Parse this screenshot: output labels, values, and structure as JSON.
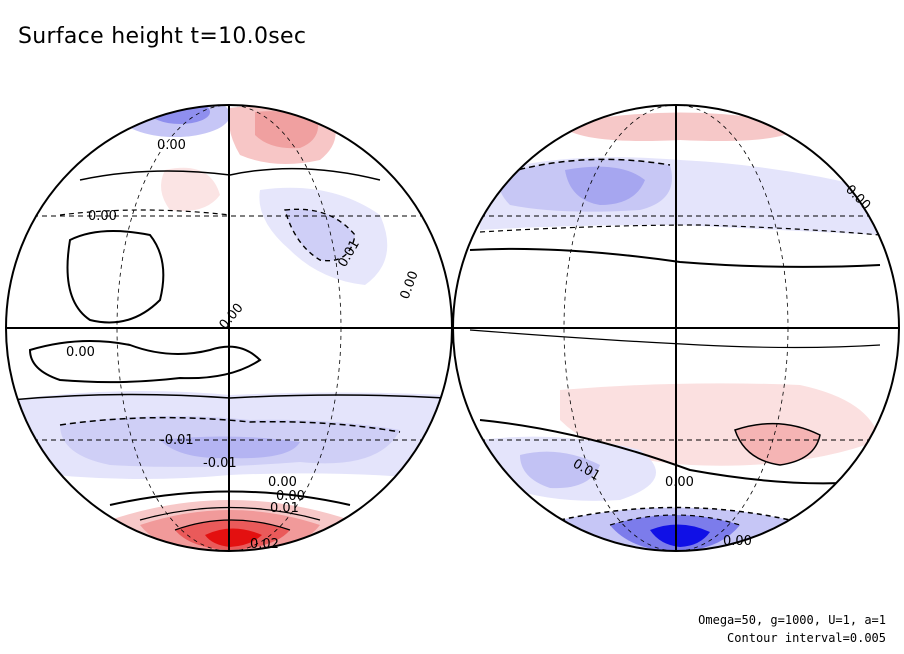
{
  "title": "Surface height t=10.0sec",
  "footer": {
    "params": "Omega=50, g=1000, U=1, a=1",
    "contour_interval": "Contour interval=0.005"
  },
  "colors": {
    "positive_strong": "#ee1c1c",
    "positive_weak": "#fbe2e2",
    "negative_strong": "#0a0ae6",
    "negative_weak": "#e4e4fb",
    "line": "#000000"
  },
  "left_labels": [
    "0.00",
    "0.00",
    "0.00",
    "0.01",
    "0.00",
    "0.00",
    "0.00",
    "-0.01",
    "-0.01",
    "0.00",
    "0.01",
    "0.02",
    "0.03"
  ],
  "right_labels": [
    "0.00",
    "0.01",
    "0.00",
    "0.00"
  ]
}
